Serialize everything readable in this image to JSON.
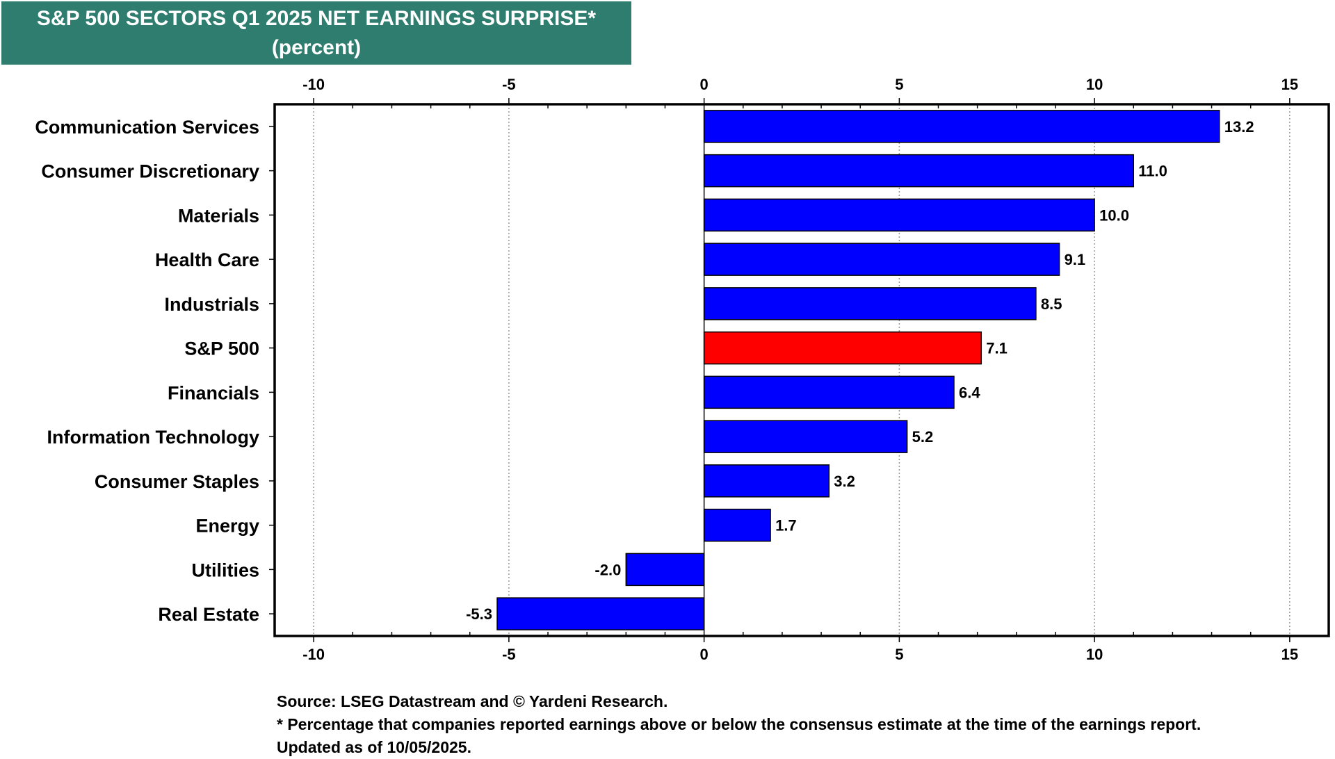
{
  "colors": {
    "title_bg": "#2e7d6e",
    "bar": "#0000ff",
    "highlight_bar": "#ff0000",
    "bar_stroke": "#000000",
    "grid": "#9a9a9a"
  },
  "header": {
    "title": "S&P 500 SECTORS Q1 2025 NET EARNINGS SURPRISE*",
    "subtitle": "(percent)"
  },
  "chart_data": {
    "type": "bar",
    "orientation": "horizontal",
    "title": "S&P 500 SECTORS Q1 2025 NET EARNINGS SURPRISE*",
    "subtitle": "(percent)",
    "categories": [
      "Communication Services",
      "Consumer Discretionary",
      "Materials",
      "Health Care",
      "Industrials",
      "S&P 500",
      "Financials",
      "Information Technology",
      "Consumer Staples",
      "Energy",
      "Utilities",
      "Real Estate"
    ],
    "values": [
      13.2,
      11.0,
      10.0,
      9.1,
      8.5,
      7.1,
      6.4,
      5.2,
      3.2,
      1.7,
      -2.0,
      -5.3
    ],
    "value_labels": [
      "13.2",
      "11.0",
      "10.0",
      "9.1",
      "8.5",
      "7.1",
      "6.4",
      "5.2",
      "3.2",
      "1.7",
      "-2.0",
      "-5.3"
    ],
    "highlight_category": "S&P 500",
    "xlim": [
      -11,
      16
    ],
    "xticks": [
      -10,
      -5,
      0,
      5,
      10,
      15
    ],
    "xtick_labels": [
      "-10",
      "-5",
      "0",
      "5",
      "10",
      "15"
    ],
    "axis_labels_top_and_bottom": true,
    "grid": "vertical dotted",
    "xlabel": "",
    "ylabel": ""
  },
  "footnotes": {
    "source": "Source: LSEG Datastream and © Yardeni Research.",
    "note": "* Percentage that companies reported earnings above or below the consensus estimate at the time of the earnings report.",
    "updated": "Updated as of 10/05/2025."
  }
}
